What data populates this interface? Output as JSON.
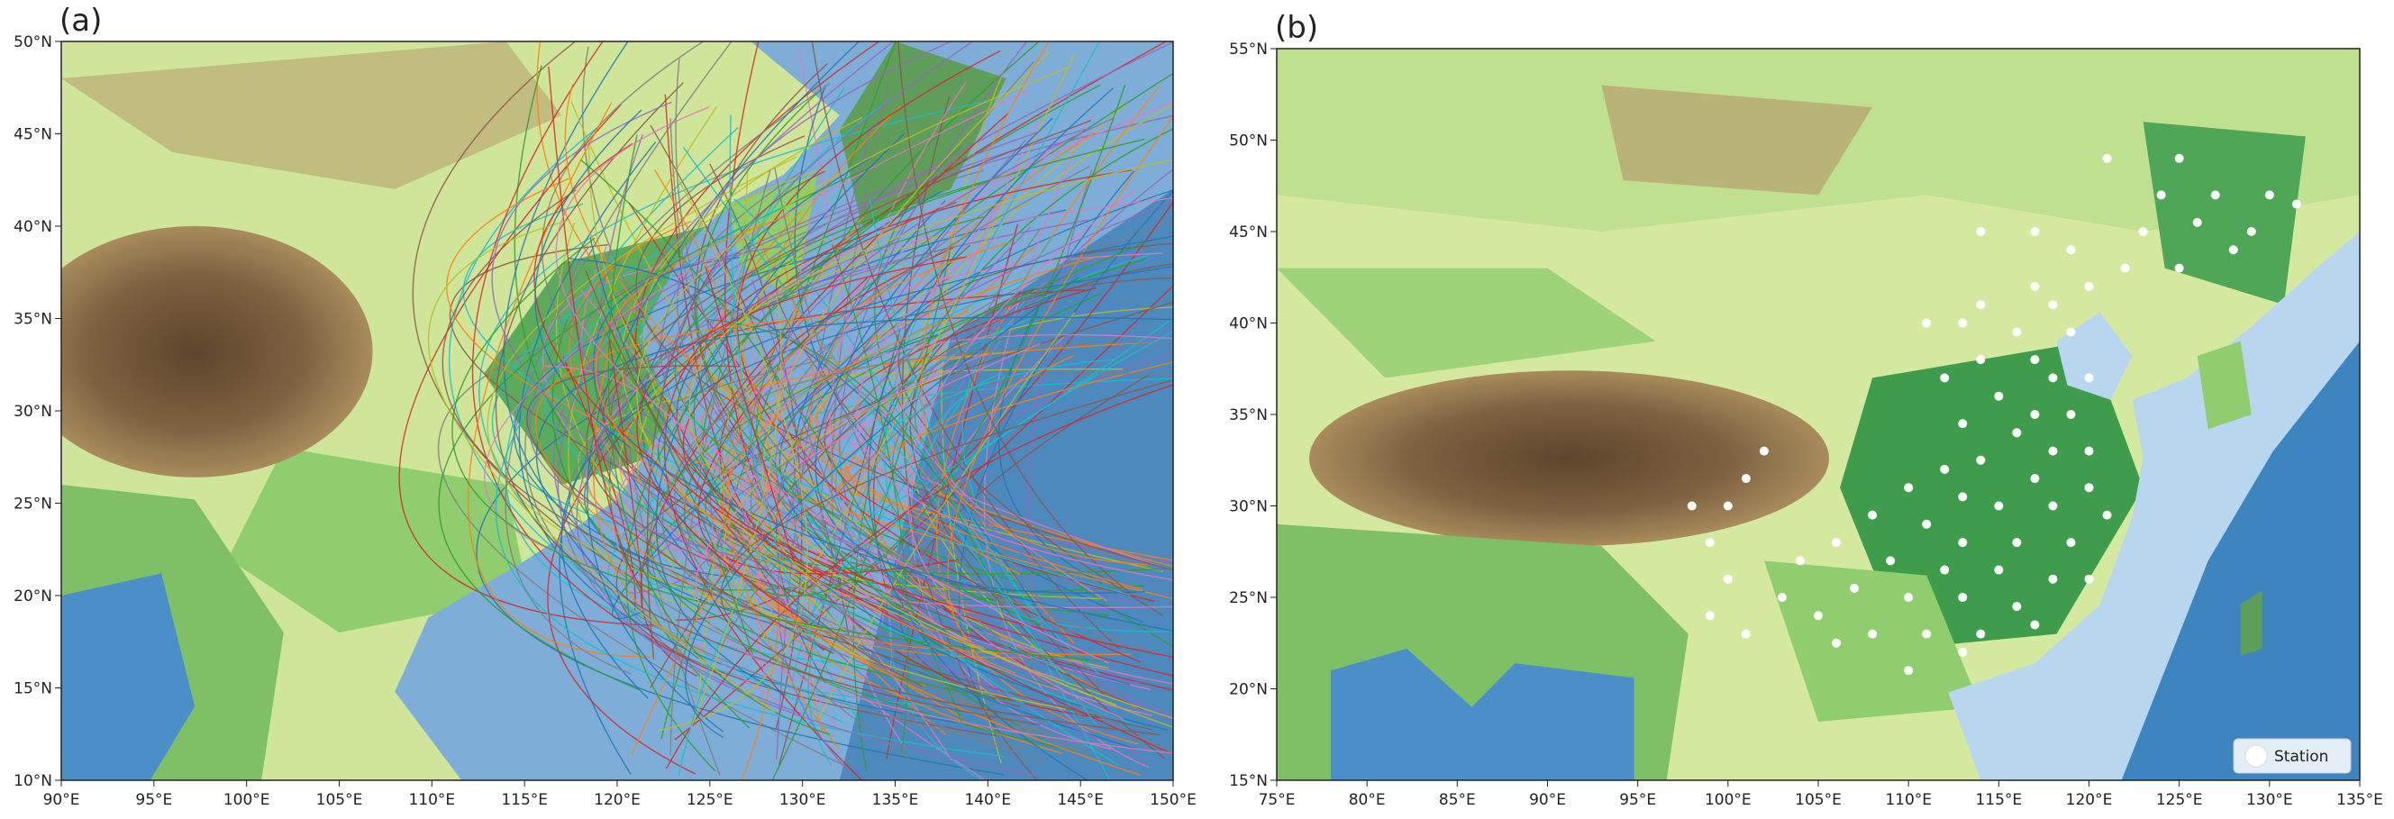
{
  "panels": [
    {
      "label": "(a)",
      "xlim": [
        90,
        150
      ],
      "ylim": [
        10,
        50
      ],
      "xticks": [
        {
          "value": 90,
          "label": "90°E"
        },
        {
          "value": 95,
          "label": "95°E"
        },
        {
          "value": 100,
          "label": "100°E"
        },
        {
          "value": 105,
          "label": "105°E"
        },
        {
          "value": 110,
          "label": "110°E"
        },
        {
          "value": 115,
          "label": "115°E"
        },
        {
          "value": 120,
          "label": "120°E"
        },
        {
          "value": 125,
          "label": "125°E"
        },
        {
          "value": 130,
          "label": "130°E"
        },
        {
          "value": 135,
          "label": "135°E"
        },
        {
          "value": 140,
          "label": "140°E"
        },
        {
          "value": 145,
          "label": "145°E"
        },
        {
          "value": 150,
          "label": "150°E"
        }
      ],
      "yticks": [
        {
          "value": 10,
          "label": "10°N"
        },
        {
          "value": 15,
          "label": "15°N"
        },
        {
          "value": 20,
          "label": "20°N"
        },
        {
          "value": 25,
          "label": "25°N"
        },
        {
          "value": 30,
          "label": "30°N"
        },
        {
          "value": 35,
          "label": "35°N"
        },
        {
          "value": 40,
          "label": "40°N"
        },
        {
          "value": 45,
          "label": "45°N"
        },
        {
          "value": 50,
          "label": "50°N"
        }
      ]
    },
    {
      "label": "(b)",
      "xlim": [
        75,
        135
      ],
      "ylim": [
        15,
        55
      ],
      "xticks": [
        {
          "value": 75,
          "label": "75°E"
        },
        {
          "value": 80,
          "label": "80°E"
        },
        {
          "value": 85,
          "label": "85°E"
        },
        {
          "value": 90,
          "label": "90°E"
        },
        {
          "value": 95,
          "label": "95°E"
        },
        {
          "value": 100,
          "label": "100°E"
        },
        {
          "value": 105,
          "label": "105°E"
        },
        {
          "value": 110,
          "label": "110°E"
        },
        {
          "value": 115,
          "label": "115°E"
        },
        {
          "value": 120,
          "label": "120°E"
        },
        {
          "value": 125,
          "label": "125°E"
        },
        {
          "value": 130,
          "label": "130°E"
        },
        {
          "value": 135,
          "label": "135°E"
        }
      ],
      "yticks": [
        {
          "value": 15,
          "label": "15°N"
        },
        {
          "value": 20,
          "label": "20°N"
        },
        {
          "value": 25,
          "label": "25°N"
        },
        {
          "value": 30,
          "label": "30°N"
        },
        {
          "value": 35,
          "label": "35°N"
        },
        {
          "value": 40,
          "label": "40°N"
        },
        {
          "value": 45,
          "label": "45°N"
        },
        {
          "value": 50,
          "label": "50°N"
        },
        {
          "value": 55,
          "label": "55°N"
        }
      ],
      "stations": {
        "name": "Station",
        "color": "#ffffff",
        "lon": [
          121,
          125,
          124,
          127,
          130,
          131.5,
          126,
          129,
          123,
          125,
          128,
          122,
          119,
          117,
          114,
          117,
          120,
          114,
          118,
          111,
          113,
          116,
          119,
          117,
          114,
          112,
          118,
          120,
          115,
          117,
          119,
          113,
          116,
          118,
          120,
          114,
          112,
          117,
          120,
          110,
          113,
          115,
          118,
          121,
          108,
          111,
          113,
          116,
          119,
          106,
          104,
          109,
          112,
          115,
          118,
          120,
          107,
          110,
          113,
          116,
          103,
          105,
          108,
          111,
          114,
          117,
          101,
          99,
          99,
          100,
          101,
          102,
          98,
          100,
          106,
          110,
          113
        ],
        "lat": [
          49,
          49,
          47,
          47,
          47,
          46.5,
          45.5,
          45,
          45,
          43,
          44,
          43,
          44,
          45,
          45,
          42,
          42,
          41,
          41,
          40,
          40,
          39.5,
          39.5,
          38,
          38,
          37,
          37,
          37,
          36,
          35,
          35,
          34.5,
          34,
          33,
          33,
          32.5,
          32,
          31.5,
          31,
          31,
          30.5,
          30,
          30,
          29.5,
          29.5,
          29,
          28,
          28,
          28,
          28,
          27,
          27,
          26.5,
          26.5,
          26,
          26,
          25.5,
          25,
          25,
          24.5,
          25,
          24,
          23,
          23,
          23,
          23.5,
          23,
          24,
          28,
          30,
          31.5,
          33,
          30,
          26,
          22.5,
          21,
          22
        ]
      }
    }
  ]
}
